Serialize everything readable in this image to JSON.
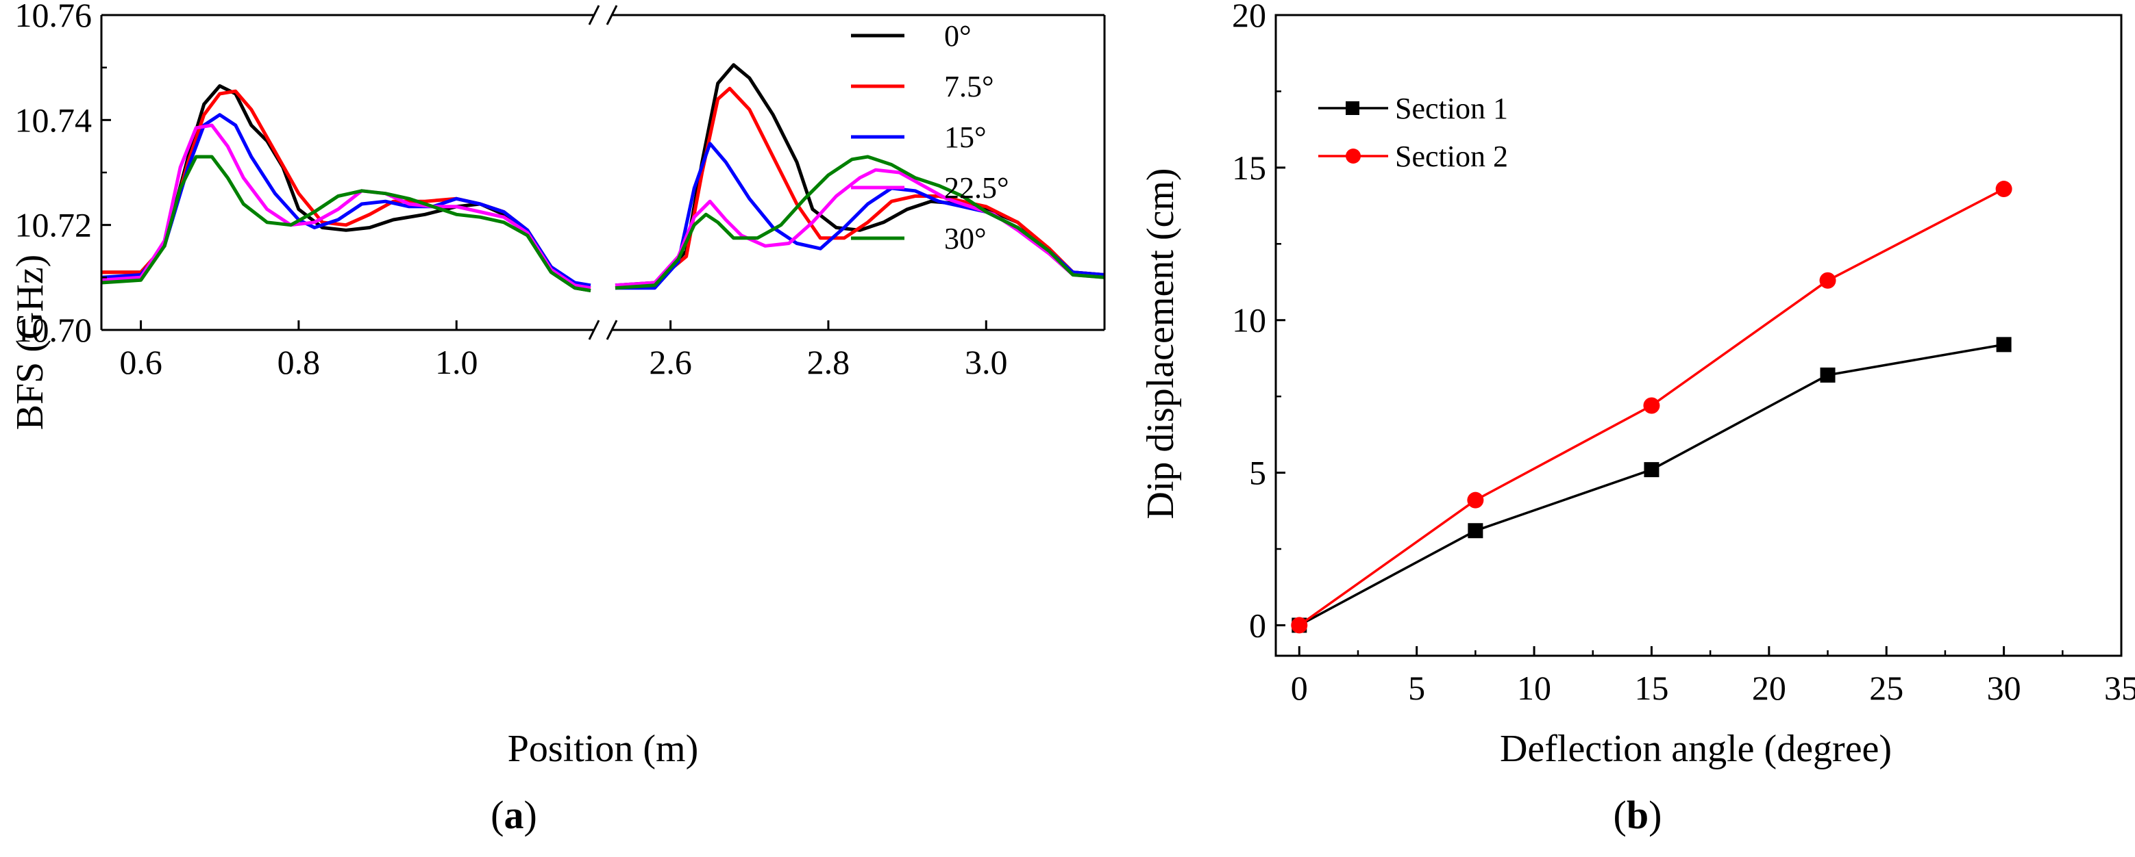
{
  "chart_data": [
    {
      "panel_label": "a",
      "type": "line",
      "xlabel": "Position (m)",
      "ylabel": "BFS (GHz)",
      "ylim": [
        10.7,
        10.76
      ],
      "yticks": [
        "10.70",
        "10.72",
        "10.74",
        "10.76"
      ],
      "xlim_left": [
        0.55,
        1.17
      ],
      "xlim_right": [
        2.53,
        3.15
      ],
      "xticks_left": [
        "0.6",
        "0.8",
        "1.0"
      ],
      "xticks_right": [
        "2.6",
        "2.8",
        "3.0"
      ],
      "legend": "top-right",
      "broken_x_axis": true,
      "series": [
        {
          "name": "0°",
          "color": "#000000",
          "left": [
            [
              0.55,
              10.711
            ],
            [
              0.6,
              10.711
            ],
            [
              0.63,
              10.716
            ],
            [
              0.66,
              10.733
            ],
            [
              0.68,
              10.743
            ],
            [
              0.7,
              10.7465
            ],
            [
              0.72,
              10.745
            ],
            [
              0.74,
              10.739
            ],
            [
              0.76,
              10.736
            ],
            [
              0.78,
              10.731
            ],
            [
              0.8,
              10.723
            ],
            [
              0.83,
              10.7195
            ],
            [
              0.86,
              10.719
            ],
            [
              0.89,
              10.7195
            ],
            [
              0.92,
              10.721
            ],
            [
              0.96,
              10.722
            ],
            [
              1.0,
              10.7235
            ],
            [
              1.03,
              10.724
            ],
            [
              1.06,
              10.722
            ],
            [
              1.09,
              10.718
            ],
            [
              1.12,
              10.711
            ],
            [
              1.15,
              10.708
            ],
            [
              1.17,
              10.7075
            ]
          ],
          "right": [
            [
              2.53,
              10.7085
            ],
            [
              2.58,
              10.709
            ],
            [
              2.62,
              10.715
            ],
            [
              2.64,
              10.732
            ],
            [
              2.66,
              10.747
            ],
            [
              2.68,
              10.7505
            ],
            [
              2.7,
              10.748
            ],
            [
              2.73,
              10.741
            ],
            [
              2.76,
              10.732
            ],
            [
              2.78,
              10.723
            ],
            [
              2.81,
              10.7195
            ],
            [
              2.84,
              10.719
            ],
            [
              2.87,
              10.7205
            ],
            [
              2.9,
              10.723
            ],
            [
              2.93,
              10.7245
            ],
            [
              2.97,
              10.724
            ],
            [
              3.0,
              10.723
            ],
            [
              3.04,
              10.7205
            ],
            [
              3.08,
              10.715
            ],
            [
              3.11,
              10.711
            ],
            [
              3.15,
              10.7105
            ]
          ]
        },
        {
          "name": "7.5°",
          "color": "#ff0000",
          "left": [
            [
              0.55,
              10.711
            ],
            [
              0.6,
              10.711
            ],
            [
              0.63,
              10.716
            ],
            [
              0.66,
              10.732
            ],
            [
              0.68,
              10.741
            ],
            [
              0.7,
              10.745
            ],
            [
              0.72,
              10.7455
            ],
            [
              0.74,
              10.742
            ],
            [
              0.77,
              10.734
            ],
            [
              0.8,
              10.726
            ],
            [
              0.83,
              10.7205
            ],
            [
              0.86,
              10.72
            ],
            [
              0.89,
              10.722
            ],
            [
              0.92,
              10.7245
            ],
            [
              0.96,
              10.7245
            ],
            [
              1.0,
              10.725
            ],
            [
              1.03,
              10.724
            ],
            [
              1.06,
              10.7225
            ],
            [
              1.09,
              10.719
            ],
            [
              1.12,
              10.712
            ],
            [
              1.15,
              10.7085
            ],
            [
              1.17,
              10.708
            ]
          ],
          "right": [
            [
              2.53,
              10.708
            ],
            [
              2.58,
              10.709
            ],
            [
              2.62,
              10.714
            ],
            [
              2.64,
              10.73
            ],
            [
              2.66,
              10.744
            ],
            [
              2.675,
              10.746
            ],
            [
              2.7,
              10.742
            ],
            [
              2.73,
              10.733
            ],
            [
              2.76,
              10.724
            ],
            [
              2.79,
              10.7175
            ],
            [
              2.82,
              10.7175
            ],
            [
              2.85,
              10.7205
            ],
            [
              2.88,
              10.7245
            ],
            [
              2.91,
              10.7255
            ],
            [
              2.94,
              10.7255
            ],
            [
              2.97,
              10.7245
            ],
            [
              3.0,
              10.7235
            ],
            [
              3.04,
              10.7205
            ],
            [
              3.08,
              10.7155
            ],
            [
              3.11,
              10.711
            ],
            [
              3.15,
              10.7105
            ]
          ]
        },
        {
          "name": "15°",
          "color": "#0000ff",
          "left": [
            [
              0.55,
              10.71
            ],
            [
              0.6,
              10.7105
            ],
            [
              0.63,
              10.716
            ],
            [
              0.66,
              10.731
            ],
            [
              0.68,
              10.739
            ],
            [
              0.7,
              10.741
            ],
            [
              0.72,
              10.739
            ],
            [
              0.74,
              10.733
            ],
            [
              0.77,
              10.726
            ],
            [
              0.8,
              10.721
            ],
            [
              0.82,
              10.7195
            ],
            [
              0.85,
              10.721
            ],
            [
              0.88,
              10.724
            ],
            [
              0.91,
              10.7245
            ],
            [
              0.94,
              10.7235
            ],
            [
              0.97,
              10.7235
            ],
            [
              1.0,
              10.725
            ],
            [
              1.03,
              10.724
            ],
            [
              1.06,
              10.7225
            ],
            [
              1.09,
              10.719
            ],
            [
              1.12,
              10.712
            ],
            [
              1.15,
              10.709
            ],
            [
              1.17,
              10.7085
            ]
          ],
          "right": [
            [
              2.53,
              10.708
            ],
            [
              2.58,
              10.708
            ],
            [
              2.61,
              10.713
            ],
            [
              2.63,
              10.727
            ],
            [
              2.65,
              10.7355
            ],
            [
              2.67,
              10.732
            ],
            [
              2.7,
              10.725
            ],
            [
              2.73,
              10.7195
            ],
            [
              2.76,
              10.7165
            ],
            [
              2.79,
              10.7155
            ],
            [
              2.82,
              10.7195
            ],
            [
              2.85,
              10.724
            ],
            [
              2.88,
              10.727
            ],
            [
              2.91,
              10.7265
            ],
            [
              2.94,
              10.7245
            ],
            [
              2.97,
              10.7235
            ],
            [
              3.0,
              10.7225
            ],
            [
              3.04,
              10.7195
            ],
            [
              3.08,
              10.715
            ],
            [
              3.11,
              10.711
            ],
            [
              3.15,
              10.7105
            ]
          ]
        },
        {
          "name": "22.5°",
          "color": "#ff00ff",
          "left": [
            [
              0.55,
              10.7095
            ],
            [
              0.6,
              10.71
            ],
            [
              0.63,
              10.717
            ],
            [
              0.65,
              10.731
            ],
            [
              0.67,
              10.7385
            ],
            [
              0.69,
              10.739
            ],
            [
              0.71,
              10.735
            ],
            [
              0.73,
              10.729
            ],
            [
              0.76,
              10.723
            ],
            [
              0.79,
              10.72
            ],
            [
              0.82,
              10.7205
            ],
            [
              0.85,
              10.723
            ],
            [
              0.88,
              10.7265
            ],
            [
              0.91,
              10.726
            ],
            [
              0.94,
              10.724
            ],
            [
              0.97,
              10.7235
            ],
            [
              1.0,
              10.7235
            ],
            [
              1.03,
              10.7225
            ],
            [
              1.06,
              10.7215
            ],
            [
              1.09,
              10.7185
            ],
            [
              1.12,
              10.7115
            ],
            [
              1.15,
              10.7085
            ],
            [
              1.17,
              10.708
            ]
          ],
          "right": [
            [
              2.53,
              10.7085
            ],
            [
              2.58,
              10.709
            ],
            [
              2.61,
              10.714
            ],
            [
              2.63,
              10.7215
            ],
            [
              2.65,
              10.7245
            ],
            [
              2.67,
              10.721
            ],
            [
              2.69,
              10.718
            ],
            [
              2.72,
              10.716
            ],
            [
              2.75,
              10.7165
            ],
            [
              2.78,
              10.7205
            ],
            [
              2.81,
              10.7255
            ],
            [
              2.84,
              10.729
            ],
            [
              2.86,
              10.7305
            ],
            [
              2.89,
              10.73
            ],
            [
              2.92,
              10.7275
            ],
            [
              2.95,
              10.725
            ],
            [
              2.98,
              10.7235
            ],
            [
              3.01,
              10.722
            ],
            [
              3.04,
              10.719
            ],
            [
              3.08,
              10.7145
            ],
            [
              3.11,
              10.7105
            ],
            [
              3.15,
              10.71
            ]
          ]
        },
        {
          "name": "30°",
          "color": "#008000",
          "left": [
            [
              0.55,
              10.709
            ],
            [
              0.6,
              10.7095
            ],
            [
              0.63,
              10.716
            ],
            [
              0.65,
              10.727
            ],
            [
              0.67,
              10.733
            ],
            [
              0.69,
              10.733
            ],
            [
              0.71,
              10.729
            ],
            [
              0.73,
              10.724
            ],
            [
              0.76,
              10.7205
            ],
            [
              0.79,
              10.72
            ],
            [
              0.82,
              10.7225
            ],
            [
              0.85,
              10.7255
            ],
            [
              0.88,
              10.7265
            ],
            [
              0.91,
              10.726
            ],
            [
              0.94,
              10.725
            ],
            [
              0.97,
              10.7235
            ],
            [
              1.0,
              10.722
            ],
            [
              1.03,
              10.7215
            ],
            [
              1.06,
              10.7205
            ],
            [
              1.09,
              10.718
            ],
            [
              1.12,
              10.711
            ],
            [
              1.15,
              10.708
            ],
            [
              1.17,
              10.7075
            ]
          ],
          "right": [
            [
              2.53,
              10.708
            ],
            [
              2.58,
              10.7085
            ],
            [
              2.61,
              10.7135
            ],
            [
              2.63,
              10.72
            ],
            [
              2.645,
              10.722
            ],
            [
              2.66,
              10.7205
            ],
            [
              2.68,
              10.7175
            ],
            [
              2.71,
              10.7175
            ],
            [
              2.74,
              10.72
            ],
            [
              2.77,
              10.725
            ],
            [
              2.8,
              10.7295
            ],
            [
              2.83,
              10.7325
            ],
            [
              2.85,
              10.733
            ],
            [
              2.88,
              10.7315
            ],
            [
              2.91,
              10.729
            ],
            [
              2.94,
              10.7275
            ],
            [
              2.97,
              10.7255
            ],
            [
              3.0,
              10.7225
            ],
            [
              3.04,
              10.7195
            ],
            [
              3.08,
              10.715
            ],
            [
              3.11,
              10.7105
            ],
            [
              3.15,
              10.71
            ]
          ]
        }
      ]
    },
    {
      "panel_label": "b",
      "type": "line",
      "xlabel": "Deflection angle (degree)",
      "ylabel": "Dip displacement (cm)",
      "xlim": [
        -1,
        35
      ],
      "ylim": [
        -1,
        20
      ],
      "xticks": [
        "0",
        "5",
        "10",
        "15",
        "20",
        "25",
        "30",
        "35"
      ],
      "yticks": [
        "0",
        "5",
        "10",
        "15",
        "20"
      ],
      "legend": "top-left",
      "x": [
        0,
        7.5,
        15,
        22.5,
        30
      ],
      "series": [
        {
          "name": "Section 1",
          "color": "#000000",
          "marker": "square",
          "values": [
            0,
            3.1,
            5.1,
            8.2,
            9.2
          ]
        },
        {
          "name": "Section 2",
          "color": "#ff0000",
          "marker": "circle",
          "values": [
            0,
            4.1,
            7.2,
            11.3,
            14.3
          ]
        }
      ]
    }
  ]
}
